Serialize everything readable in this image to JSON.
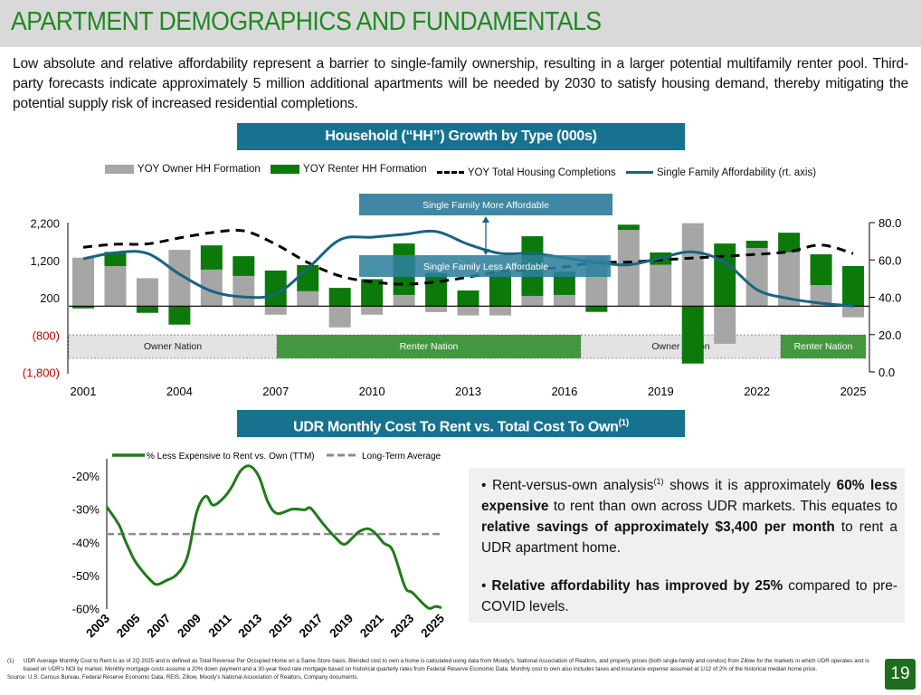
{
  "header": {
    "title": "APARTMENT DEMOGRAPHICS AND FUNDAMENTALS"
  },
  "intro": "Low absolute and relative affordability represent a barrier to single-family ownership, resulting in a larger potential multifamily renter pool. Third-party forecasts indicate approximately 5 million additional apartments will be needed by 2030 to satisfy housing demand, thereby mitigating the potential supply risk of increased residential completions.",
  "banner1": {
    "title": "Household (“HH”) Growth by Type (000s)"
  },
  "banner2": {
    "title": "UDR Monthly Cost To Rent vs. Total Cost To Own",
    "sup": "(1)"
  },
  "colors": {
    "owner": "#a6a6a6",
    "renter": "#0b7a0b",
    "completions": "#000000",
    "affordability": "#17657f",
    "rent_vs_own": "#1f7a1a",
    "long_term_avg": "#8c8c8c",
    "negative_label": "#c00000",
    "title": "#1f8a22",
    "banner": "#17728f"
  },
  "chart_data": [
    {
      "type": "bar",
      "title": "Household (“HH”) Growth by Type (000s)",
      "stacked": true,
      "legend_position": "top",
      "categories": [
        2001,
        2002,
        2003,
        2004,
        2005,
        2006,
        2007,
        2008,
        2009,
        2010,
        2011,
        2012,
        2013,
        2014,
        2015,
        2016,
        2017,
        2018,
        2019,
        2020,
        2021,
        2022,
        2023,
        2024,
        2025
      ],
      "x_tick_labels": [
        "2001",
        "2004",
        "2007",
        "2010",
        "2013",
        "2016",
        "2019",
        "2022",
        "2025"
      ],
      "left_axis": {
        "ylim": [
          -1800,
          2200
        ],
        "tick_labels": [
          "2,200",
          "1,200",
          "200",
          "(800)",
          "(1,800)"
        ],
        "ticks": [
          2200,
          1200,
          200,
          -800,
          -1800
        ]
      },
      "right_axis": {
        "ylim": [
          0,
          80
        ],
        "tick_labels": [
          "80.0",
          "60.0",
          "40.0",
          "20.0",
          "0.0"
        ],
        "ticks": [
          80,
          60,
          40,
          20,
          0
        ]
      },
      "series": [
        {
          "name": "YOY Owner HH Formation",
          "kind": "bar",
          "axis": "left",
          "values": [
            1300,
            1075,
            750,
            1510,
            980,
            810,
            -230,
            400,
            -570,
            -230,
            300,
            -160,
            -250,
            -250,
            275,
            300,
            1340,
            2045,
            1110,
            2225,
            -1010,
            1560,
            1445,
            565,
            -300
          ]
        },
        {
          "name": "YOY Renter HH Formation",
          "kind": "bar",
          "axis": "left",
          "values": [
            -60,
            380,
            -180,
            -495,
            650,
            530,
            955,
            700,
            490,
            725,
            1380,
            890,
            420,
            920,
            1600,
            630,
            -155,
            140,
            330,
            -1540,
            1680,
            195,
            525,
            825,
            1075
          ]
        },
        {
          "name": "YOY Total Housing Completions",
          "kind": "dashed-line",
          "axis": "left",
          "values": [
            1580,
            1660,
            1670,
            1830,
            1970,
            2020,
            1660,
            1170,
            810,
            650,
            590,
            650,
            780,
            930,
            980,
            1050,
            1170,
            1180,
            1240,
            1290,
            1340,
            1390,
            1460,
            1640,
            1410
          ]
        },
        {
          "name": "Single Family Affordability (rt. axis)",
          "kind": "line",
          "axis": "right",
          "values": [
            60.6,
            63.9,
            63.5,
            52.4,
            43.3,
            40.2,
            41.7,
            55.4,
            70.8,
            72.2,
            73.7,
            75.2,
            68.4,
            63.5,
            63.5,
            61.1,
            58.7,
            57.4,
            61.1,
            64.3,
            58.7,
            44.1,
            39.3,
            36.8,
            35.3
          ]
        }
      ],
      "annotations": {
        "more_affordable": "Single Family More Affordable",
        "less_affordable": "Single Family Less Affordable"
      },
      "regimes": [
        {
          "label": "Owner Nation",
          "from": 2001,
          "to": 2007
        },
        {
          "label": "Renter Nation",
          "from": 2007,
          "to": 2016
        },
        {
          "label": "Owner Nation",
          "from": 2016,
          "to": 2023
        },
        {
          "label": "Renter Nation",
          "from": 2023,
          "to": 2025
        }
      ]
    },
    {
      "type": "line",
      "title": "UDR Monthly Cost To Rent vs. Total Cost To Own(1)",
      "legend_position": "top",
      "ylim": [
        -60,
        -17
      ],
      "y_ticks": [
        -20,
        -30,
        -40,
        -50,
        -60
      ],
      "y_tick_labels": [
        "-20%",
        "-30%",
        "-40%",
        "-50%",
        "-60%"
      ],
      "x_tick_labels": [
        "2003",
        "2005",
        "2007",
        "2009",
        "2011",
        "2013",
        "2015",
        "2017",
        "2019",
        "2021",
        "2023",
        "2025"
      ],
      "series": [
        {
          "name": "% Less Expensive to Rent vs. Own (TTM)",
          "x": [
            2003.0,
            2003.8,
            2004.2,
            2004.8,
            2005.3,
            2005.9,
            2006.3,
            2006.9,
            2007.6,
            2008.3,
            2008.9,
            2009.5,
            2010.0,
            2010.7,
            2011.2,
            2011.8,
            2012.4,
            2013.0,
            2013.6,
            2014.2,
            2015.2,
            2016.0,
            2016.4,
            2017.2,
            2018.0,
            2018.6,
            2019.2,
            2019.6,
            2020.2,
            2020.7,
            2021.2,
            2021.8,
            2022.6,
            2023.1,
            2024.1,
            2024.6,
            2025.0
          ],
          "y": [
            -29.3,
            -34.7,
            -39.3,
            -45.2,
            -48.4,
            -51.5,
            -52.7,
            -51.5,
            -49.7,
            -44.3,
            -31.1,
            -26.1,
            -28.8,
            -26.5,
            -23.4,
            -18.4,
            -17.0,
            -20.2,
            -27.9,
            -31.3,
            -30.0,
            -30.2,
            -29.7,
            -34.3,
            -38.4,
            -40.6,
            -38.4,
            -36.7,
            -35.9,
            -37.5,
            -40.2,
            -42.5,
            -53.4,
            -55.2,
            -59.7,
            -59.3,
            -59.7
          ]
        },
        {
          "name": "Long-Term Average",
          "constant": -37.5
        }
      ]
    }
  ],
  "bullets": {
    "b1_pre": "Rent-versus-own analysis",
    "b1_sup": "(1)",
    "b1_mid": " shows it is approximately ",
    "b1_bold1": "60% less expensive",
    "b1_mid2": " to rent than own across UDR markets. This equates to ",
    "b1_bold2": "relative savings of approximately $3,400 per month",
    "b1_end": " to rent a UDR apartment home.",
    "b2_bold": "Relative affordability has improved by 25%",
    "b2_end": " compared to pre-COVID levels."
  },
  "footnote": {
    "num": "(1)",
    "text": "UDR Average Monthly Cost to Rent is as of 2Q 2025 and is defined as Total Revenue Per Occupied Home on a Same-Store basis. Blended cost to own a home is calculated using data from Moody's, National Association of Realtors, and property prices (both single-family and condos) from Zillow for the markets in which UDR operates and is based on UDR's NOI by market. Monthly mortgage costs assume a 20% down payment and a 30-year fixed rate mortgage based on historical quarterly rates from Federal Reserve Economic Data. Monthly cost to own also includes taxes and insurance expense assumed at 1/12 of 2% of the historical median home price.",
    "source": "Source: U.S. Census Bureau, Federal Reserve Economic Data, REIS, Zillow, Moody's National Association of Realtors, Company documents."
  },
  "page_number": "19"
}
